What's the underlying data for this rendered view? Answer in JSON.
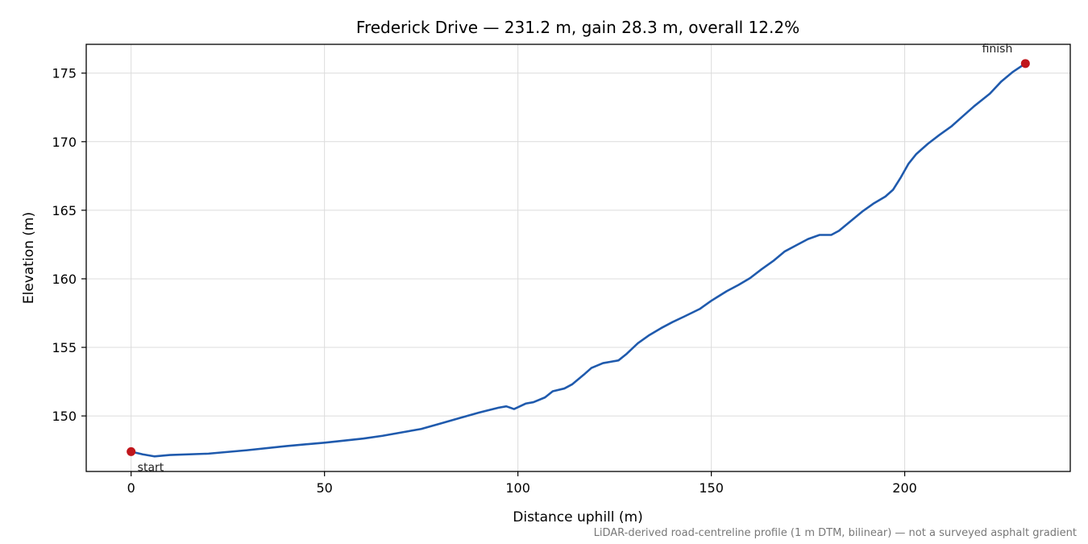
{
  "chart_data": {
    "type": "line",
    "title": "Frederick Drive — 231.2 m, gain 28.3 m, overall 12.2%",
    "xlabel": "Distance uphill (m)",
    "ylabel": "Elevation (m)",
    "xlim": [
      -11.6,
      242.8
    ],
    "ylim": [
      145.95,
      177.1
    ],
    "xticks": [
      0,
      50,
      100,
      150,
      200
    ],
    "yticks": [
      150,
      155,
      160,
      165,
      170,
      175
    ],
    "grid": true,
    "series": [
      {
        "color": "#1f5aad",
        "x": [
          0,
          3,
          6,
          10,
          20,
          30,
          40,
          50,
          60,
          65,
          70,
          75,
          80,
          85,
          90,
          95,
          97,
          99,
          102,
          104,
          107,
          109,
          112,
          114,
          117,
          119,
          122,
          124,
          126,
          128,
          131,
          134,
          137,
          140,
          143,
          147,
          150,
          154,
          157,
          160,
          163,
          166,
          169,
          172,
          175,
          178,
          181,
          183,
          186,
          189,
          192,
          195,
          197,
          199,
          201,
          203,
          206,
          209,
          212,
          215,
          218,
          222,
          225,
          228,
          231.2
        ],
        "y": [
          147.4,
          147.2,
          147.05,
          147.15,
          147.25,
          147.5,
          147.8,
          148.05,
          148.35,
          148.55,
          148.8,
          149.05,
          149.45,
          149.85,
          150.25,
          150.6,
          150.7,
          150.5,
          150.9,
          151.0,
          151.35,
          151.8,
          152.0,
          152.3,
          153.0,
          153.5,
          153.85,
          153.95,
          154.05,
          154.5,
          155.3,
          155.9,
          156.4,
          156.85,
          157.25,
          157.8,
          158.4,
          159.1,
          159.55,
          160.05,
          160.7,
          161.3,
          162.0,
          162.45,
          162.9,
          163.2,
          163.2,
          163.5,
          164.2,
          164.9,
          165.5,
          166.0,
          166.5,
          167.4,
          168.4,
          169.1,
          169.85,
          170.5,
          171.1,
          171.85,
          172.6,
          173.5,
          174.4,
          175.1,
          175.7
        ]
      }
    ],
    "markers": [
      {
        "x": 0,
        "y": 147.4,
        "color": "#c0161c",
        "label": "start"
      },
      {
        "x": 231.2,
        "y": 175.7,
        "color": "#c0161c",
        "label": "finish"
      }
    ],
    "footnote": "LiDAR-derived road-centreline profile (1 m DTM, bilinear) — not a surveyed asphalt gradient"
  }
}
